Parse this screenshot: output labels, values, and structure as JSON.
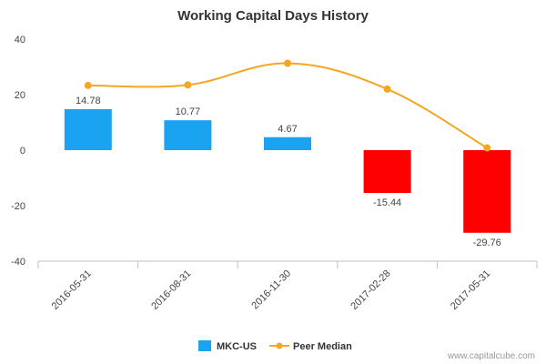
{
  "chart_data": {
    "type": "bar",
    "title": "Working Capital Days History",
    "categories": [
      "2016-05-31",
      "2016-08-31",
      "2016-11-30",
      "2017-02-28",
      "2017-05-31"
    ],
    "series": [
      {
        "name": "MKC-US",
        "kind": "bar",
        "values": [
          14.78,
          10.77,
          4.67,
          -15.44,
          -29.76
        ],
        "labels": [
          "14.78",
          "10.77",
          "4.67",
          "-15.44",
          "-29.76"
        ],
        "colors": [
          "#1aa3f0",
          "#1aa3f0",
          "#1aa3f0",
          "#ff0000",
          "#ff0000"
        ]
      },
      {
        "name": "Peer Median",
        "kind": "line",
        "values": [
          23.3,
          23.5,
          31.3,
          22.0,
          0.8
        ],
        "color": "#f5a623"
      }
    ],
    "yticks": [
      "40",
      "20",
      "0",
      "-20",
      "-40"
    ],
    "ylim": [
      -40,
      40
    ],
    "grid": false,
    "legend_position": "bottom",
    "colors": {
      "positive_bar": "#1aa3f0",
      "negative_bar": "#ff0000",
      "peer_line": "#f5a623",
      "axis": "#c0c0c0"
    }
  },
  "legend": {
    "bar_label": "MKC-US",
    "line_label": "Peer Median"
  },
  "watermark": "www.capitalcube.com"
}
